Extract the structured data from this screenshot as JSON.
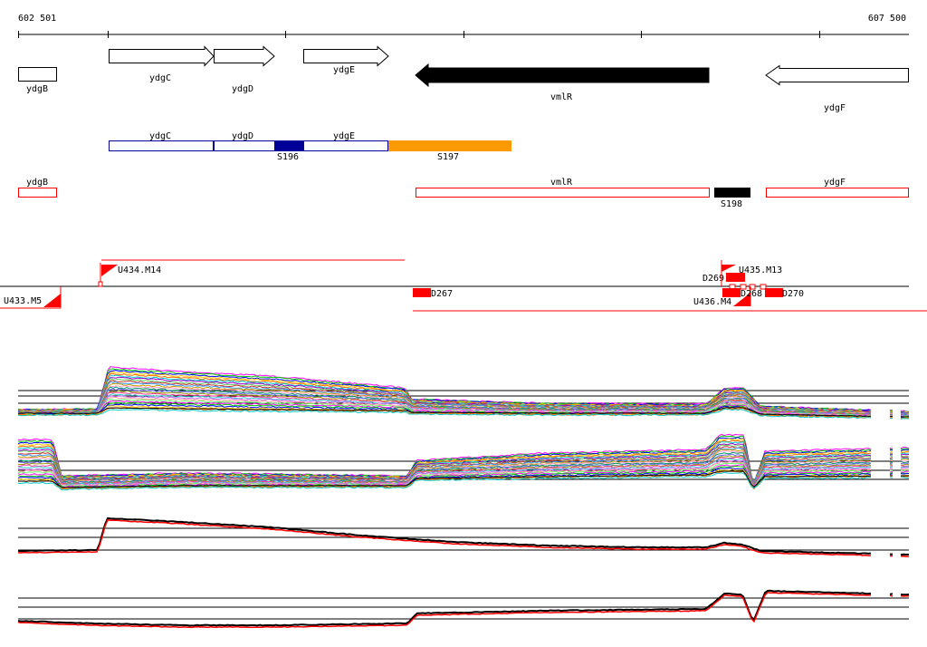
{
  "coordinates": {
    "start": "602 501",
    "end": "607 500"
  },
  "genes": [
    {
      "label": "ydgB",
      "strand": "none",
      "color": "#ffffff"
    },
    {
      "label": "ydgC",
      "strand": "+",
      "color": "#ffffff"
    },
    {
      "label": "ydgD",
      "strand": "+",
      "color": "#ffffff"
    },
    {
      "label": "ydgE",
      "strand": "+",
      "color": "#ffffff"
    },
    {
      "label": "vmlR",
      "strand": "-",
      "color": "#000000"
    },
    {
      "label": "ydgF",
      "strand": "-",
      "color": "#ffffff"
    }
  ],
  "operon_labels": [
    "ydgC",
    "ydgD",
    "ydgE"
  ],
  "segments": [
    {
      "label": "S196",
      "color": "#000099"
    },
    {
      "label": "S197",
      "color": "#ff9900"
    },
    {
      "label": "S198",
      "color": "#000000"
    }
  ],
  "transcript_labels": [
    "ydgB",
    "vmlR",
    "ydgF"
  ],
  "features": [
    "U433.M5",
    "U434.M14",
    "D267",
    "D269",
    "U435.M13",
    "U436.M4",
    "D268",
    "D270"
  ],
  "tracks": [
    {
      "name": "all-profiles-1",
      "color": "multi"
    },
    {
      "name": "all-profiles-2",
      "color": "multi"
    },
    {
      "name": "mean-profile-1",
      "colors": [
        "#000000",
        "#ff0000"
      ]
    },
    {
      "name": "mean-profile-2",
      "colors": [
        "#000000",
        "#ff0000"
      ]
    }
  ],
  "accent_color": "#ff0000"
}
